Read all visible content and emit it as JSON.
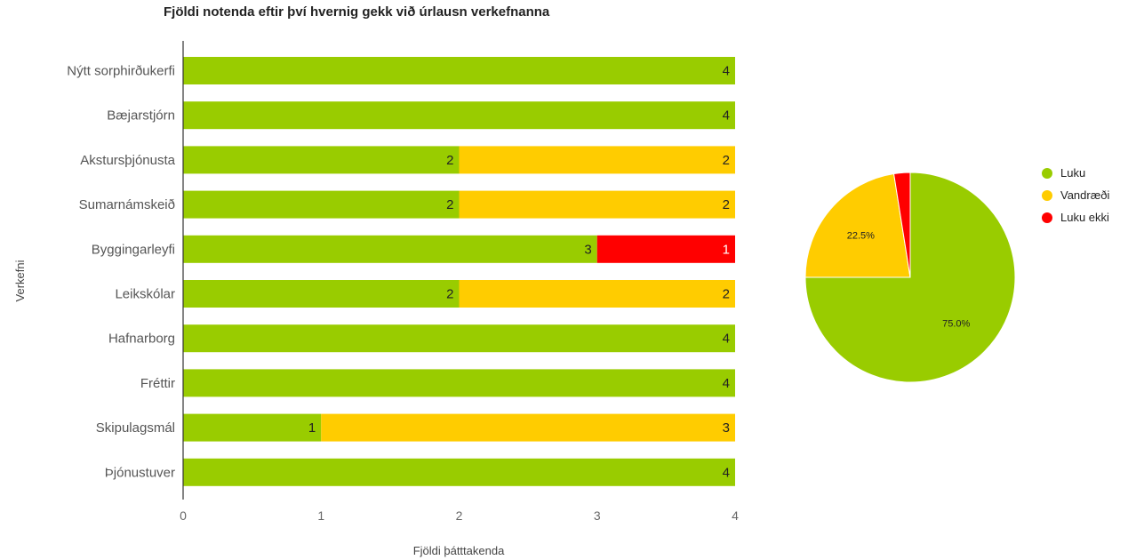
{
  "chart_data": [
    {
      "type": "bar",
      "orientation": "horizontal",
      "stacked": true,
      "title": "Fjöldi notenda eftir því hvernig gekk við úrlausn verkefnanna",
      "xlabel": "Fjöldi þátttakenda",
      "ylabel": "Verkefni",
      "xlim": [
        0,
        4
      ],
      "xticks": [
        "0",
        "1",
        "2",
        "3",
        "4"
      ],
      "grid": false,
      "categories": [
        "Nýtt sorphirðukerfi",
        "Bæjarstjórn",
        "Akstursþjónusta",
        "Sumarnámskeið",
        "Byggingarleyfi",
        "Leikskólar",
        "Hafnarborg",
        "Fréttir",
        "Skipulagsmál",
        "Þjónustuver"
      ],
      "series": [
        {
          "name": "Luku",
          "color": "#99cc00",
          "values": [
            4,
            4,
            2,
            2,
            3,
            2,
            4,
            4,
            1,
            4
          ]
        },
        {
          "name": "Vandræði",
          "color": "#ffcc00",
          "values": [
            0,
            0,
            2,
            2,
            0,
            2,
            0,
            0,
            3,
            0
          ]
        },
        {
          "name": "Luku ekki",
          "color": "#ff0000",
          "values": [
            0,
            0,
            0,
            0,
            1,
            0,
            0,
            0,
            0,
            0
          ]
        }
      ]
    },
    {
      "type": "pie",
      "legend": "right",
      "slices": [
        {
          "name": "Luku",
          "value": 75.0,
          "label": "75.0%",
          "color": "#99cc00"
        },
        {
          "name": "Vandræði",
          "value": 22.5,
          "label": "22.5%",
          "color": "#ffcc00"
        },
        {
          "name": "Luku ekki",
          "value": 2.5,
          "label": "",
          "color": "#ff0000"
        }
      ]
    }
  ]
}
